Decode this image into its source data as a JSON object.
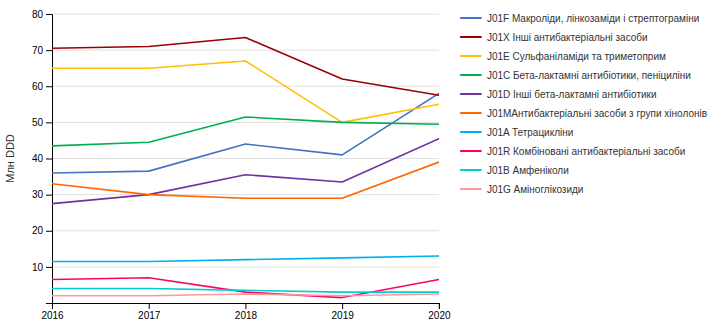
{
  "chart_data": {
    "type": "line",
    "y_label": "Млн DDD",
    "x": [
      2016,
      2017,
      2018,
      2019,
      2020
    ],
    "xlim": [
      2016,
      2020
    ],
    "xticks": [
      2016,
      2017,
      2018,
      2019,
      2020
    ],
    "ylim": [
      0,
      80
    ],
    "yticks": [
      10,
      20,
      30,
      40,
      50,
      60,
      70,
      80
    ],
    "grid": true,
    "legend": "right",
    "series": [
      {
        "name": "J01F Макроліди, лінкозаміди і стрептограміни",
        "color": "#4472C4",
        "values": [
          36,
          36.5,
          44,
          41,
          58
        ]
      },
      {
        "name": "J01X Інші антибактеріальні засоби",
        "color": "#9B0000",
        "values": [
          70.5,
          71,
          73.5,
          62,
          57.5
        ]
      },
      {
        "name": "J01E Сульфаніламіди та триметоприм",
        "color": "#FFC000",
        "values": [
          65,
          65,
          67,
          50,
          55
        ]
      },
      {
        "name": "J01C Бета-лактамні антибіотики, пеніциліни",
        "color": "#00B050",
        "values": [
          43.5,
          44.5,
          51.5,
          50,
          49.5
        ]
      },
      {
        "name": "J01D Інші бета-лактамні антибіотики",
        "color": "#7030A0",
        "values": [
          27.5,
          30,
          35.5,
          33.5,
          45.5
        ]
      },
      {
        "name": "J01MАнтибактеріальні засоби з групи хінолонів",
        "color": "#FF6600",
        "values": [
          33,
          30,
          29,
          29,
          39
        ]
      },
      {
        "name": "J01A Тетрацикліни",
        "color": "#00B0F0",
        "values": [
          11.5,
          11.5,
          12,
          12.5,
          13
        ]
      },
      {
        "name": "J01R Комбіновані антибактеріальні засоби",
        "color": "#FF0066",
        "values": [
          6.5,
          7,
          3,
          1.5,
          6.5
        ]
      },
      {
        "name": "J01B Амфеніколи",
        "color": "#00CED1",
        "values": [
          4,
          4,
          3.5,
          3,
          3
        ]
      },
      {
        "name": "J01G Аміноглікозиди",
        "color": "#FF9999",
        "values": [
          2,
          2,
          2.5,
          2,
          2.5
        ]
      }
    ]
  }
}
